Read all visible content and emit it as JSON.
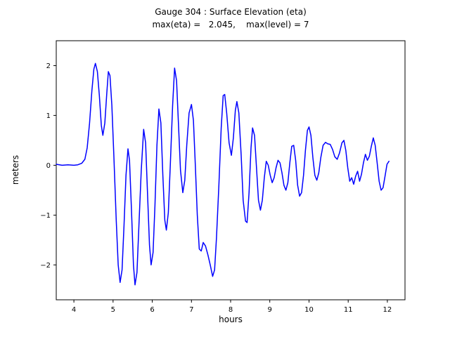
{
  "title": {
    "line1": "Gauge 304 : Surface Elevation (eta)",
    "line2": "max(eta) =   2.045,    max(level) = 7"
  },
  "chart_data": {
    "type": "line",
    "title": "Gauge 304 : Surface Elevation (eta)",
    "subtitle": "max(eta) =   2.045,    max(level) = 7",
    "xlabel": "hours",
    "ylabel": "meters",
    "xlim": [
      3.55,
      12.45
    ],
    "ylim": [
      -2.7,
      2.5
    ],
    "xticks": [
      4,
      5,
      6,
      7,
      8,
      9,
      10,
      11,
      12
    ],
    "yticks": [
      -2,
      -1,
      0,
      1,
      2
    ],
    "grid": false,
    "legend": "none",
    "line_color": "#0000ff",
    "max_eta": 2.045,
    "max_level": 7,
    "series": [
      {
        "name": "eta",
        "x": [
          3.55,
          3.7,
          3.85,
          4.0,
          4.1,
          4.2,
          4.28,
          4.34,
          4.4,
          4.46,
          4.51,
          4.55,
          4.6,
          4.65,
          4.7,
          4.74,
          4.79,
          4.84,
          4.88,
          4.92,
          4.97,
          5.02,
          5.08,
          5.13,
          5.18,
          5.23,
          5.28,
          5.33,
          5.38,
          5.42,
          5.47,
          5.52,
          5.56,
          5.61,
          5.66,
          5.72,
          5.78,
          5.83,
          5.88,
          5.93,
          5.97,
          6.02,
          6.07,
          6.12,
          6.17,
          6.22,
          6.27,
          6.32,
          6.36,
          6.41,
          6.46,
          6.52,
          6.57,
          6.62,
          6.67,
          6.72,
          6.78,
          6.83,
          6.88,
          6.94,
          7.0,
          7.05,
          7.1,
          7.15,
          7.2,
          7.25,
          7.3,
          7.36,
          7.42,
          7.48,
          7.54,
          7.59,
          7.64,
          7.7,
          7.76,
          7.81,
          7.85,
          7.9,
          7.96,
          8.02,
          8.07,
          8.12,
          8.16,
          8.21,
          8.27,
          8.32,
          8.38,
          8.42,
          8.47,
          8.52,
          8.56,
          8.61,
          8.66,
          8.71,
          8.76,
          8.81,
          8.86,
          8.91,
          8.96,
          9.01,
          9.06,
          9.11,
          9.16,
          9.21,
          9.26,
          9.31,
          9.36,
          9.41,
          9.46,
          9.51,
          9.56,
          9.61,
          9.66,
          9.71,
          9.76,
          9.81,
          9.86,
          9.91,
          9.96,
          10.0,
          10.05,
          10.1,
          10.15,
          10.2,
          10.25,
          10.3,
          10.36,
          10.42,
          10.48,
          10.54,
          10.6,
          10.66,
          10.72,
          10.78,
          10.84,
          10.89,
          10.94,
          10.99,
          11.04,
          11.09,
          11.14,
          11.19,
          11.24,
          11.29,
          11.34,
          11.39,
          11.44,
          11.49,
          11.54,
          11.59,
          11.64,
          11.69,
          11.74,
          11.79,
          11.84,
          11.89,
          11.94,
          11.99,
          12.04
        ],
        "values": [
          0.02,
          0.0,
          0.01,
          0.0,
          0.01,
          0.04,
          0.12,
          0.35,
          0.85,
          1.5,
          1.93,
          2.045,
          1.88,
          1.4,
          0.8,
          0.6,
          0.85,
          1.45,
          1.88,
          1.8,
          1.2,
          0.2,
          -1.1,
          -2.0,
          -2.35,
          -2.1,
          -1.2,
          -0.2,
          0.33,
          0.1,
          -0.9,
          -2.0,
          -2.4,
          -2.15,
          -1.2,
          -0.1,
          0.72,
          0.45,
          -0.6,
          -1.6,
          -2.0,
          -1.75,
          -0.8,
          0.4,
          1.13,
          0.85,
          -0.2,
          -1.1,
          -1.3,
          -0.95,
          0.0,
          1.2,
          1.95,
          1.7,
          0.8,
          -0.1,
          -0.55,
          -0.3,
          0.4,
          1.05,
          1.22,
          0.9,
          0.0,
          -1.0,
          -1.68,
          -1.72,
          -1.55,
          -1.62,
          -1.8,
          -2.0,
          -2.23,
          -2.1,
          -1.45,
          -0.4,
          0.75,
          1.4,
          1.42,
          1.05,
          0.45,
          0.2,
          0.55,
          1.1,
          1.28,
          1.05,
          0.2,
          -0.7,
          -1.12,
          -1.15,
          -0.55,
          0.35,
          0.75,
          0.6,
          -0.05,
          -0.7,
          -0.9,
          -0.7,
          -0.25,
          0.08,
          0.0,
          -0.2,
          -0.35,
          -0.25,
          -0.05,
          0.1,
          0.05,
          -0.15,
          -0.4,
          -0.5,
          -0.35,
          0.05,
          0.38,
          0.4,
          0.1,
          -0.4,
          -0.62,
          -0.55,
          -0.2,
          0.3,
          0.7,
          0.77,
          0.6,
          0.15,
          -0.2,
          -0.3,
          -0.15,
          0.15,
          0.4,
          0.46,
          0.43,
          0.42,
          0.32,
          0.17,
          0.12,
          0.25,
          0.45,
          0.5,
          0.3,
          -0.05,
          -0.32,
          -0.25,
          -0.38,
          -0.22,
          -0.12,
          -0.32,
          -0.18,
          0.05,
          0.22,
          0.1,
          0.18,
          0.38,
          0.55,
          0.4,
          0.05,
          -0.32,
          -0.5,
          -0.45,
          -0.22,
          0.02,
          0.08
        ]
      }
    ]
  }
}
